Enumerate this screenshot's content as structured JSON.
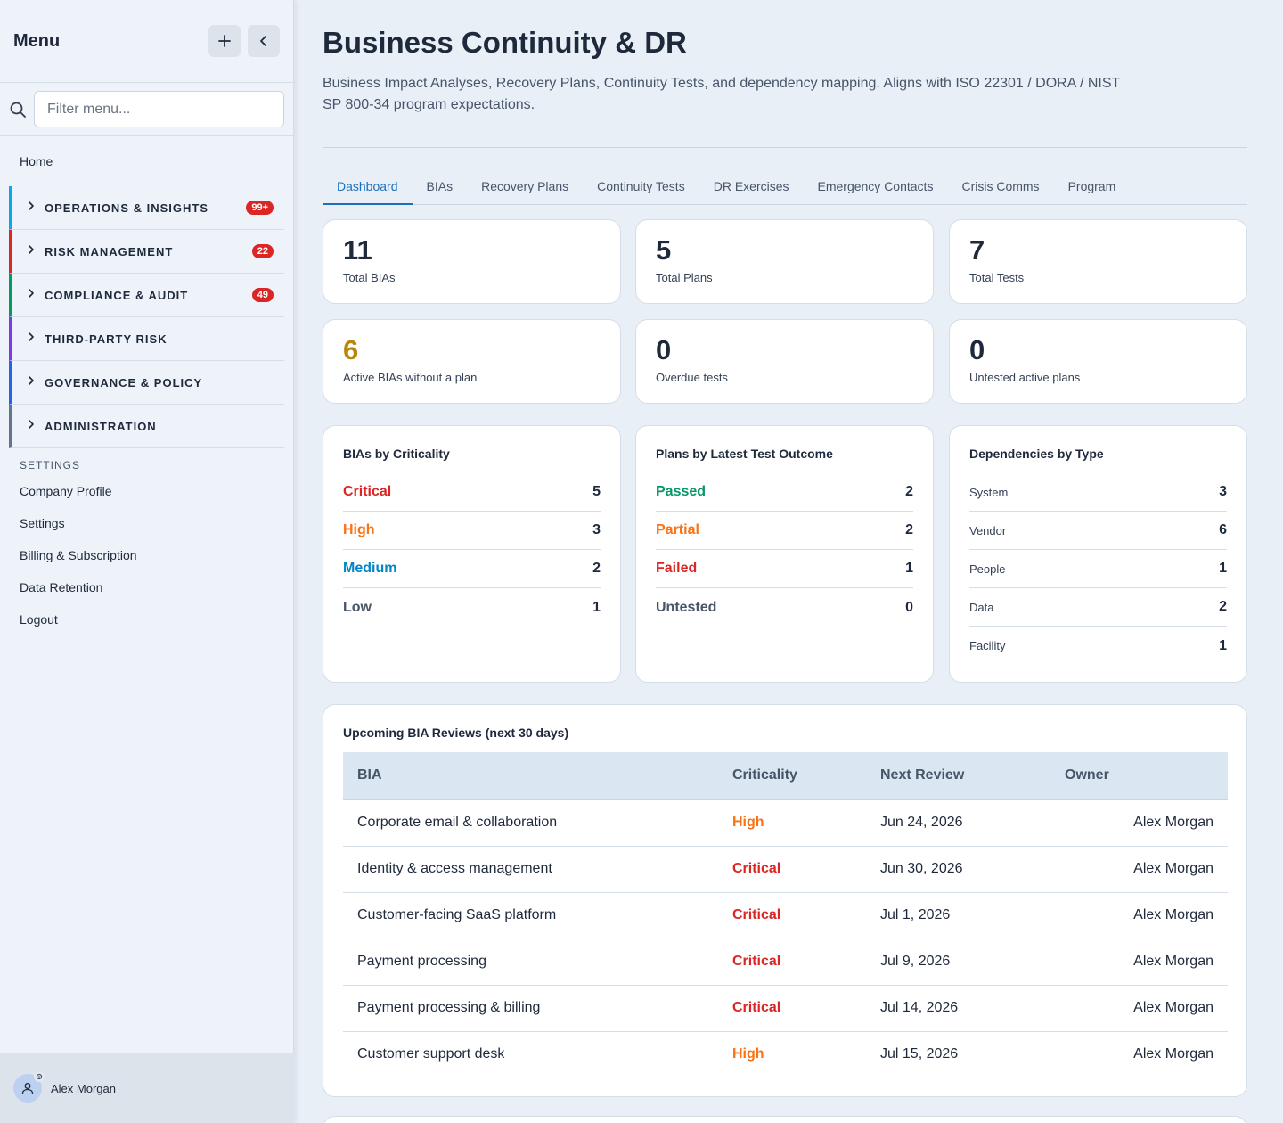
{
  "sidebar": {
    "title": "Menu",
    "filter_placeholder": "Filter menu...",
    "home": "Home",
    "groups": [
      {
        "label": "OPERATIONS & INSIGHTS",
        "badge": "99+",
        "color": "#0ea5e9"
      },
      {
        "label": "RISK MANAGEMENT",
        "badge": "22",
        "color": "#dc2626"
      },
      {
        "label": "COMPLIANCE & AUDIT",
        "badge": "49",
        "color": "#059669"
      },
      {
        "label": "THIRD-PARTY RISK",
        "badge": "",
        "color": "#7c3aed"
      },
      {
        "label": "GOVERNANCE & POLICY",
        "badge": "",
        "color": "#2563eb"
      },
      {
        "label": "ADMINISTRATION",
        "badge": "",
        "color": "#64748b"
      }
    ],
    "settings_heading": "SETTINGS",
    "links": [
      "Company Profile",
      "Settings",
      "Billing & Subscription",
      "Data Retention",
      "Logout"
    ],
    "user": "Alex Morgan"
  },
  "page": {
    "title": "Business Continuity & DR",
    "description": "Business Impact Analyses, Recovery Plans, Continuity Tests, and dependency mapping. Aligns with ISO 22301 / DORA / NIST SP 800-34 program expectations."
  },
  "tabs": [
    "Dashboard",
    "BIAs",
    "Recovery Plans",
    "Continuity Tests",
    "DR Exercises",
    "Emergency Contacts",
    "Crisis Comms",
    "Program"
  ],
  "active_tab": "Dashboard",
  "stats": [
    {
      "value": "11",
      "label": "Total BIAs",
      "color": "#1e293b"
    },
    {
      "value": "5",
      "label": "Total Plans",
      "color": "#1e293b"
    },
    {
      "value": "7",
      "label": "Total Tests",
      "color": "#1e293b"
    },
    {
      "value": "6",
      "label": "Active BIAs without a plan",
      "color": "#b8860b"
    },
    {
      "value": "0",
      "label": "Overdue tests",
      "color": "#1e293b"
    },
    {
      "value": "0",
      "label": "Untested active plans",
      "color": "#1e293b"
    }
  ],
  "breakdowns": [
    {
      "title": "BIAs by Criticality",
      "rows": [
        {
          "label": "Critical",
          "value": "5",
          "color": "#dc2626"
        },
        {
          "label": "High",
          "value": "3",
          "color": "#f97316"
        },
        {
          "label": "Medium",
          "value": "2",
          "color": "#0284c7"
        },
        {
          "label": "Low",
          "value": "1",
          "color": "#475569"
        }
      ]
    },
    {
      "title": "Plans by Latest Test Outcome",
      "rows": [
        {
          "label": "Passed",
          "value": "2",
          "color": "#059669"
        },
        {
          "label": "Partial",
          "value": "2",
          "color": "#f97316"
        },
        {
          "label": "Failed",
          "value": "1",
          "color": "#dc2626"
        },
        {
          "label": "Untested",
          "value": "0",
          "color": "#475569"
        }
      ]
    },
    {
      "title": "Dependencies by Type",
      "rows": [
        {
          "label": "System",
          "value": "3"
        },
        {
          "label": "Vendor",
          "value": "6"
        },
        {
          "label": "People",
          "value": "1"
        },
        {
          "label": "Data",
          "value": "2"
        },
        {
          "label": "Facility",
          "value": "1"
        }
      ]
    }
  ],
  "reviews": {
    "title": "Upcoming BIA Reviews (next 30 days)",
    "columns": [
      "BIA",
      "Criticality",
      "Next Review",
      "Owner"
    ],
    "rows": [
      {
        "bia": "Corporate email & collaboration",
        "criticality": "High",
        "next_review": "Jun 24, 2026",
        "owner": "Alex Morgan"
      },
      {
        "bia": "Identity & access management",
        "criticality": "Critical",
        "next_review": "Jun 30, 2026",
        "owner": "Alex Morgan"
      },
      {
        "bia": "Customer-facing SaaS platform",
        "criticality": "Critical",
        "next_review": "Jul 1, 2026",
        "owner": "Alex Morgan"
      },
      {
        "bia": "Payment processing",
        "criticality": "Critical",
        "next_review": "Jul 9, 2026",
        "owner": "Alex Morgan"
      },
      {
        "bia": "Payment processing & billing",
        "criticality": "Critical",
        "next_review": "Jul 14, 2026",
        "owner": "Alex Morgan"
      },
      {
        "bia": "Customer support desk",
        "criticality": "High",
        "next_review": "Jul 15, 2026",
        "owner": "Alex Morgan"
      }
    ],
    "criticality_colors": {
      "Critical": "#dc2626",
      "High": "#f97316"
    }
  }
}
